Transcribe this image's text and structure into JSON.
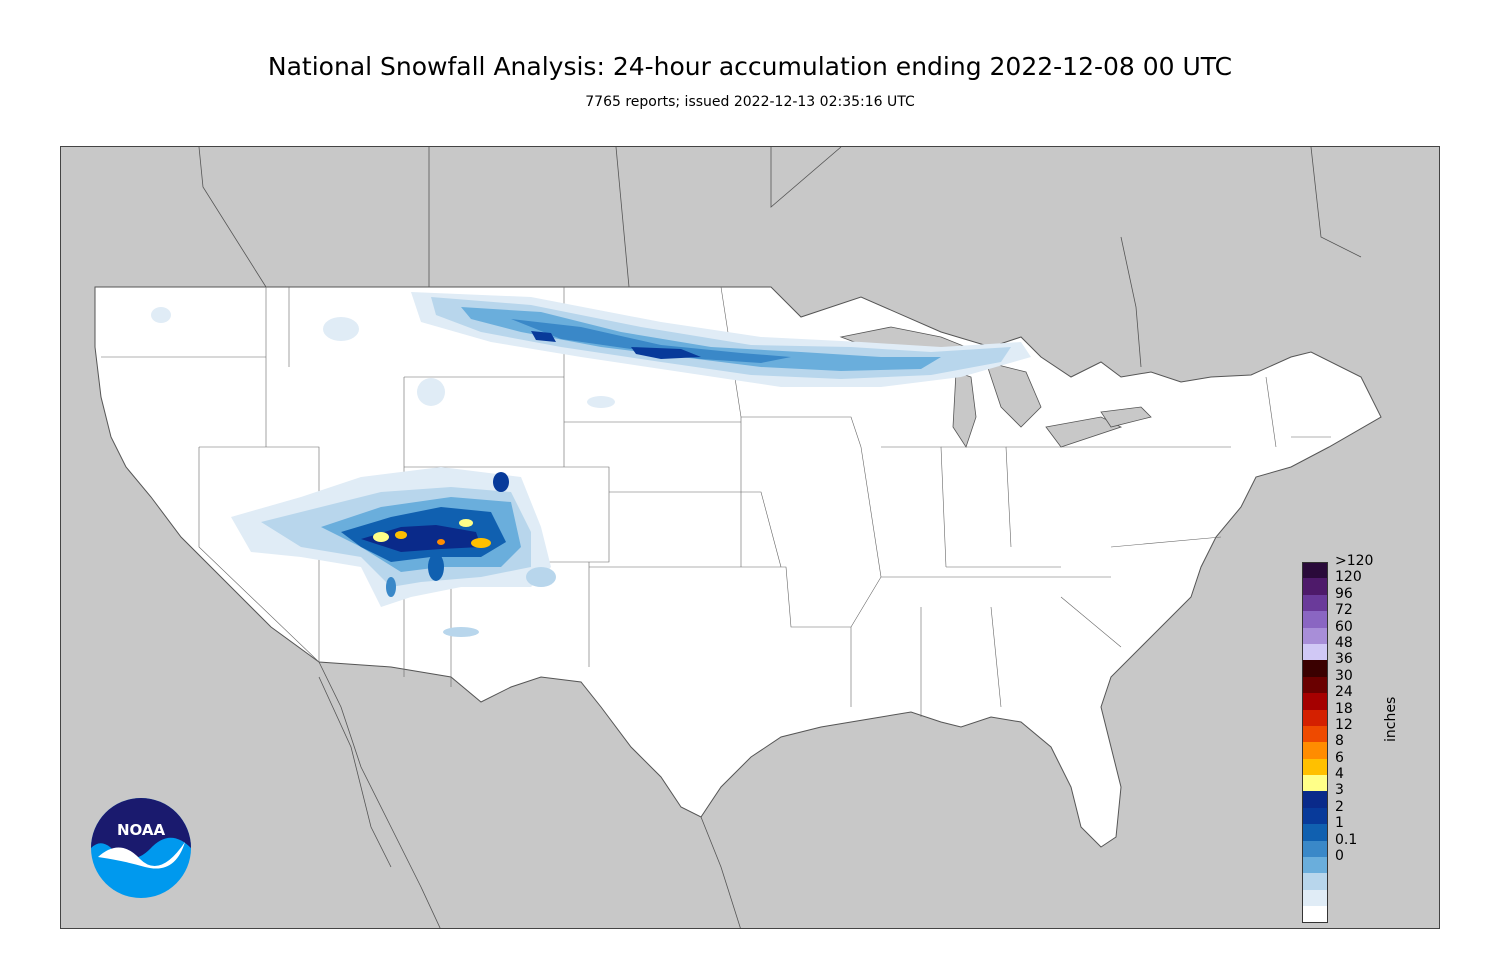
{
  "title": "National Snowfall Analysis: 24-hour accumulation ending 2022-12-08 00 UTC",
  "subtitle": "7765 reports; issued 2022-12-13 02:35:16 UTC",
  "map": {
    "land_color": "#ffffff",
    "outside_color": "#c8c8c8",
    "border_color": "#555555"
  },
  "legend": {
    "units_label": "inches",
    "entries": [
      {
        "label": ">120",
        "color": "#2a0a3a"
      },
      {
        "label": "120",
        "color": "#4e1a6a"
      },
      {
        "label": "96",
        "color": "#6a3a9a"
      },
      {
        "label": "72",
        "color": "#8a66c2"
      },
      {
        "label": "60",
        "color": "#a88ed8"
      },
      {
        "label": "48",
        "color": "#d0c8f5"
      },
      {
        "label": "36",
        "color": "#3a0000"
      },
      {
        "label": "30",
        "color": "#6a0000"
      },
      {
        "label": "24",
        "color": "#a50000"
      },
      {
        "label": "18",
        "color": "#d42000"
      },
      {
        "label": "12",
        "color": "#ee4a00"
      },
      {
        "label": "8",
        "color": "#ff8c00"
      },
      {
        "label": "6",
        "color": "#ffc000"
      },
      {
        "label": "4",
        "color": "#ffff88"
      },
      {
        "label": "3",
        "color": "#0a2a8a"
      },
      {
        "label": "2",
        "color": "#083a9a"
      },
      {
        "label": "1",
        "color": "#1060b0"
      },
      {
        "label": "0.1",
        "color": "#3a88c8"
      },
      {
        "label": "0",
        "color": "#6aaedc"
      },
      {
        "label": "",
        "color": "#b8d6ec"
      },
      {
        "label": "",
        "color": "#e0ecf6"
      },
      {
        "label": "",
        "color": "#ffffff"
      }
    ]
  },
  "logo": {
    "text": "NOAA"
  }
}
